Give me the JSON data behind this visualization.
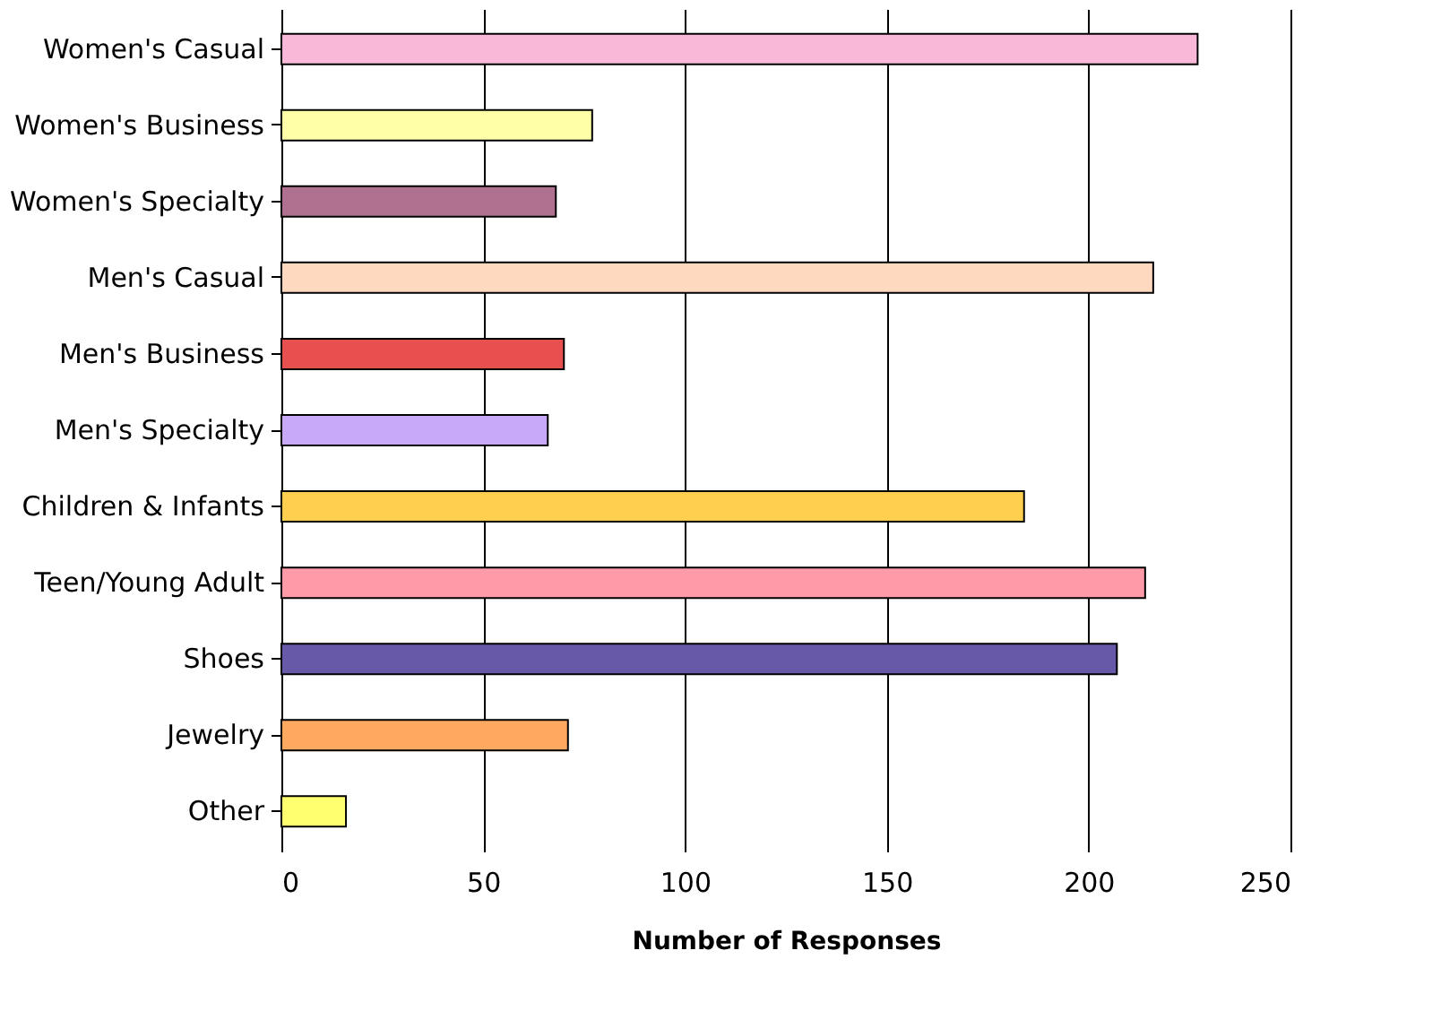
{
  "chart_data": {
    "type": "bar",
    "orientation": "horizontal",
    "xlabel": "Number of Responses",
    "categories": [
      "Women's Casual",
      "Women's Business",
      "Women's Specialty",
      "Men's Casual",
      "Men's Business",
      "Men's Specialty",
      "Children & Infants",
      "Teen/Young Adult",
      "Shoes",
      "Jewelry",
      "Other"
    ],
    "values": [
      227,
      77,
      68,
      216,
      70,
      66,
      184,
      214,
      207,
      71,
      16
    ],
    "colors": [
      "#f9b8d8",
      "#ffffa8",
      "#b07090",
      "#ffd8c0",
      "#e85050",
      "#c8a8f8",
      "#ffd050",
      "#ff9aa8",
      "#6858a8",
      "#ffa860",
      "#ffff70"
    ],
    "xlim": [
      0,
      250
    ],
    "xticks": [
      0,
      50,
      100,
      150,
      200,
      250
    ],
    "grid": "x"
  }
}
